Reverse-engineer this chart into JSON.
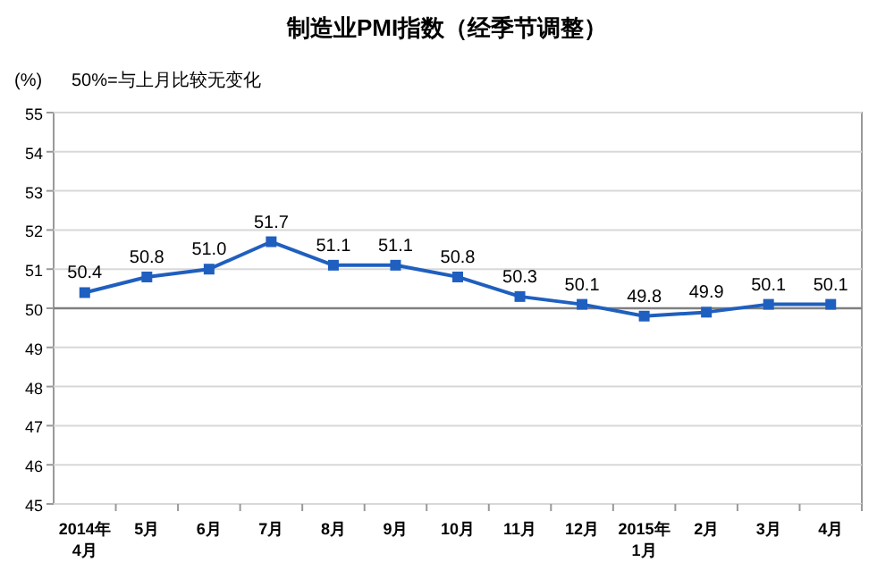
{
  "chart_data": {
    "type": "line",
    "title": "制造业PMI指数（经季节调整）",
    "ylabel": "(%)",
    "annotations": [
      "50%=与上月比较无变化"
    ],
    "categories": [
      "2014年\n4月",
      "5月",
      "6月",
      "7月",
      "8月",
      "9月",
      "10月",
      "11月",
      "12月",
      "2015年\n1月",
      "2月",
      "3月",
      "4月"
    ],
    "series": [
      {
        "color": "#1f5fbf",
        "values": [
          50.4,
          50.8,
          51.0,
          51.7,
          51.1,
          51.1,
          50.8,
          50.3,
          50.1,
          49.8,
          49.9,
          50.1,
          50.1
        ],
        "value_labels": [
          "50.4",
          "50.8",
          "51.0",
          "51.7",
          "51.1",
          "51.1",
          "50.8",
          "50.3",
          "50.1",
          "49.8",
          "49.9",
          "50.1",
          "50.1"
        ]
      }
    ],
    "ylim": [
      45,
      55
    ],
    "yticks": [
      45,
      46,
      47,
      48,
      49,
      50,
      51,
      52,
      53,
      54,
      55
    ],
    "grid": "y",
    "marker": "square",
    "line_style": "solid",
    "ref_lines": [
      {
        "axis": "y",
        "value": 50,
        "color": "#808080"
      }
    ]
  }
}
